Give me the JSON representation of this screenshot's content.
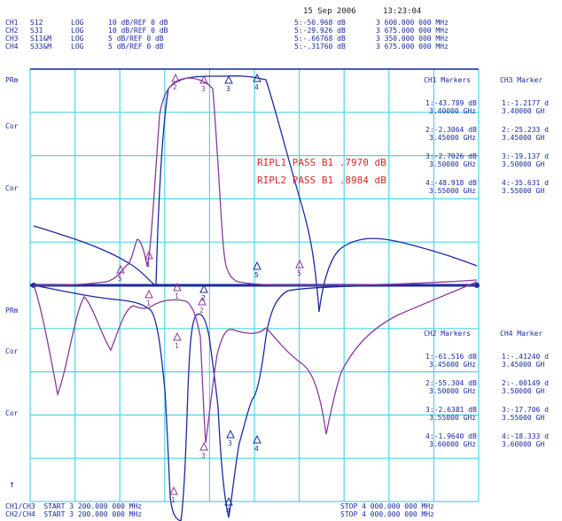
{
  "header": {
    "date": "15 Sep 2006",
    "time": "13:23:04"
  },
  "channels": [
    {
      "ch": "CH1",
      "param": "S12",
      "fmt": "LOG",
      "scale": "10 dB/REF 0 dB",
      "mval": "5:-50.968 dB",
      "mfreq": "3 600.000 000 MHz"
    },
    {
      "ch": "CH2",
      "param": "S31",
      "fmt": "LOG",
      "scale": "10 dB/REF 0 dB",
      "mval": "5:-29.926 dB",
      "mfreq": "3 675.000 000 MHz"
    },
    {
      "ch": "CH3",
      "param": "S11&M",
      "fmt": "LOG",
      "scale": "5 dB/REF 0 dB",
      "mval": "5:-.66768 dB",
      "mfreq": "3 350.000 000 MHz"
    },
    {
      "ch": "CH4",
      "param": "S33&M",
      "fmt": "LOG",
      "scale": "5 dB/REF 0 dB",
      "mval": "5:-.31760 dB",
      "mfreq": "3 675.000 000 MHz"
    }
  ],
  "left_labels": [
    "PRm",
    "Cor",
    "Cor",
    "PRm",
    "Cor",
    "Cor"
  ],
  "ripple": [
    "RIPL1 PASS B1 .7970 dB",
    "RIPL2 PASS B1 .8984 dB"
  ],
  "markers_top": {
    "ch1_title": "CH1 Markers",
    "ch3_title": "CH3 Marker",
    "ch1": [
      [
        "1:-43.789 dB",
        "3.40000 GHz"
      ],
      [
        "2:-2.3064 dB",
        "3.45000 GHz"
      ],
      [
        "3:-2.7026 dB",
        "3.50000 GHz"
      ],
      [
        "4:-48.918 dB",
        "3.55000 GHz"
      ]
    ],
    "ch3": [
      [
        "1:-1.2177 d",
        "3.40000 GH"
      ],
      [
        "2:-25.233 d",
        "3.45000 GH"
      ],
      [
        "3:-19.137 d",
        "3.50000 GH"
      ],
      [
        "4:-35.631 d",
        "3.55000 GH"
      ]
    ]
  },
  "markers_bottom": {
    "ch2_title": "CH2 Markers",
    "ch4_title": "CH4 Marker",
    "ch2": [
      [
        "1:-61.516 dB",
        "3.45000 GHz"
      ],
      [
        "2:-55.304 dB",
        "3.50000 GHz"
      ],
      [
        "3:-2.6381 dB",
        "3.55000 GHz"
      ],
      [
        "4:-1.9640 dB",
        "3.60000 GHz"
      ]
    ],
    "ch4": [
      [
        "1:-.41240 d",
        "3.45000 GH"
      ],
      [
        "2:-.00149 d",
        "3.50000 GH"
      ],
      [
        "3:-17.706 d",
        "3.55000 GH"
      ],
      [
        "4:-18.333 d",
        "3.60000 GH"
      ]
    ]
  },
  "footer": {
    "start1": "CH1/CH3  START 3 200.000 000 MHz",
    "start2": "CH2/CH4  START 3 200.000 000 MHz",
    "stop1": "STOP 4 000.000 000 MHz",
    "stop2": "STOP 4 000.000 000 MHz"
  },
  "colors": {
    "grid": "#4fd6e6",
    "blue": "#1a2aa0",
    "violet": "#8a3a9a",
    "red": "#d42a2a"
  }
}
